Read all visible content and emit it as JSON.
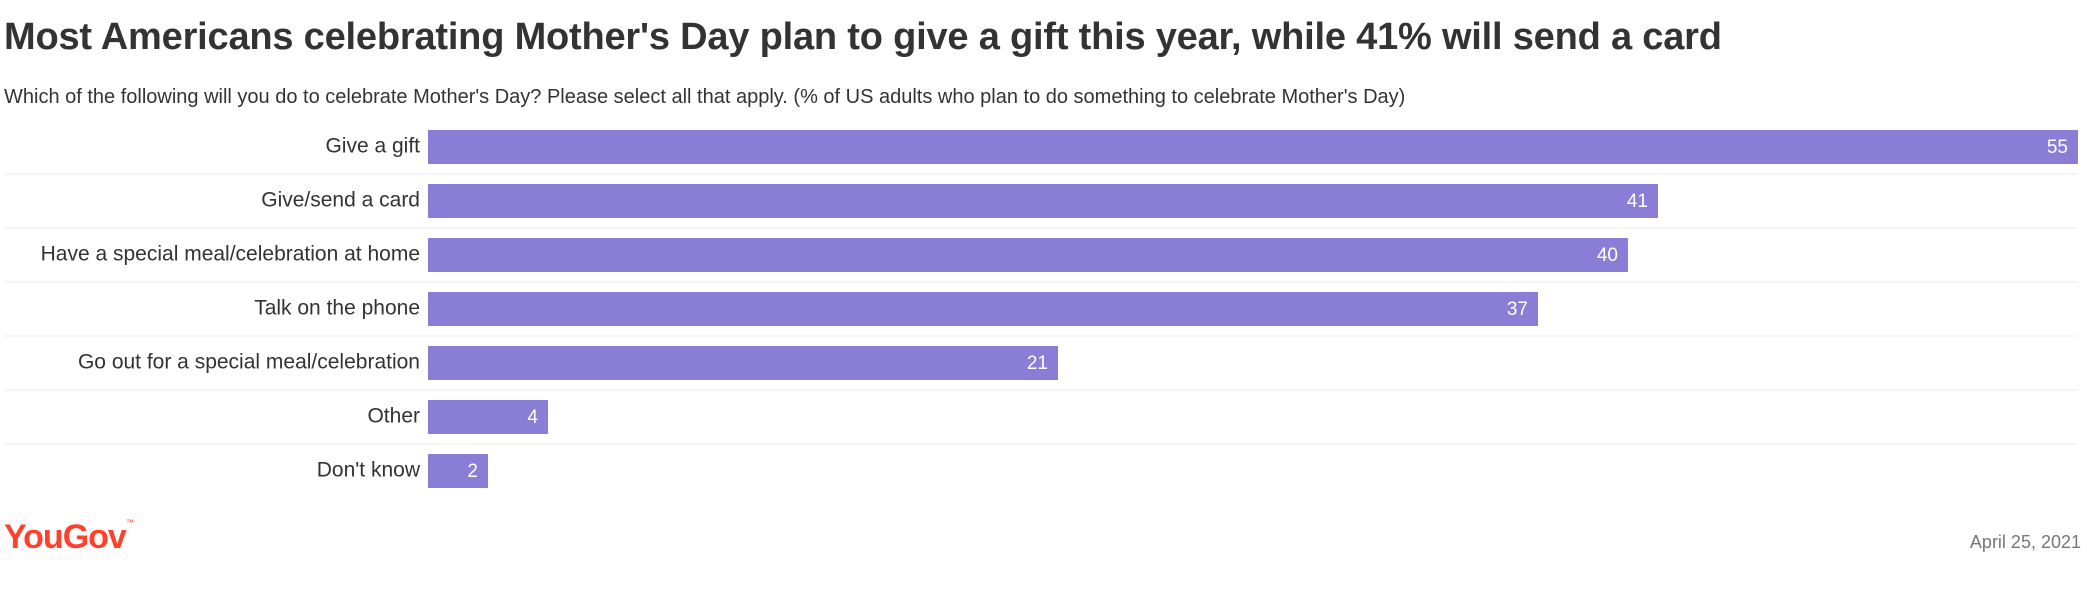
{
  "header": {
    "title": "Most Americans celebrating Mother's Day plan to give a gift this year, while 41% will send a card",
    "subtitle": "Which of the following will you do to celebrate Mother's Day? Please select all that apply. (% of US adults who plan to do something to celebrate Mother's Day)"
  },
  "chart_data": {
    "type": "bar",
    "orientation": "horizontal",
    "title": "Most Americans celebrating Mother's Day plan to give a gift this year, while 41% will send a card",
    "subtitle": "Which of the following will you do to celebrate Mother's Day? Please select all that apply. (% of US adults who plan to do something to celebrate Mother's Day)",
    "categories": [
      "Give a gift",
      "Give/send a card",
      "Have a special meal/celebration at home",
      "Talk on the phone",
      "Go out for a special meal/celebration",
      "Other",
      "Don't know"
    ],
    "values": [
      55,
      41,
      40,
      37,
      21,
      4,
      2
    ],
    "xlim": [
      0,
      55
    ],
    "xlabel": "",
    "ylabel": "",
    "grid": false,
    "bar_color": "#8a7dd6",
    "data_labels": true
  },
  "footer": {
    "brand": "YouGov",
    "brand_color": "#ff412c",
    "date": "April 25, 2021"
  }
}
